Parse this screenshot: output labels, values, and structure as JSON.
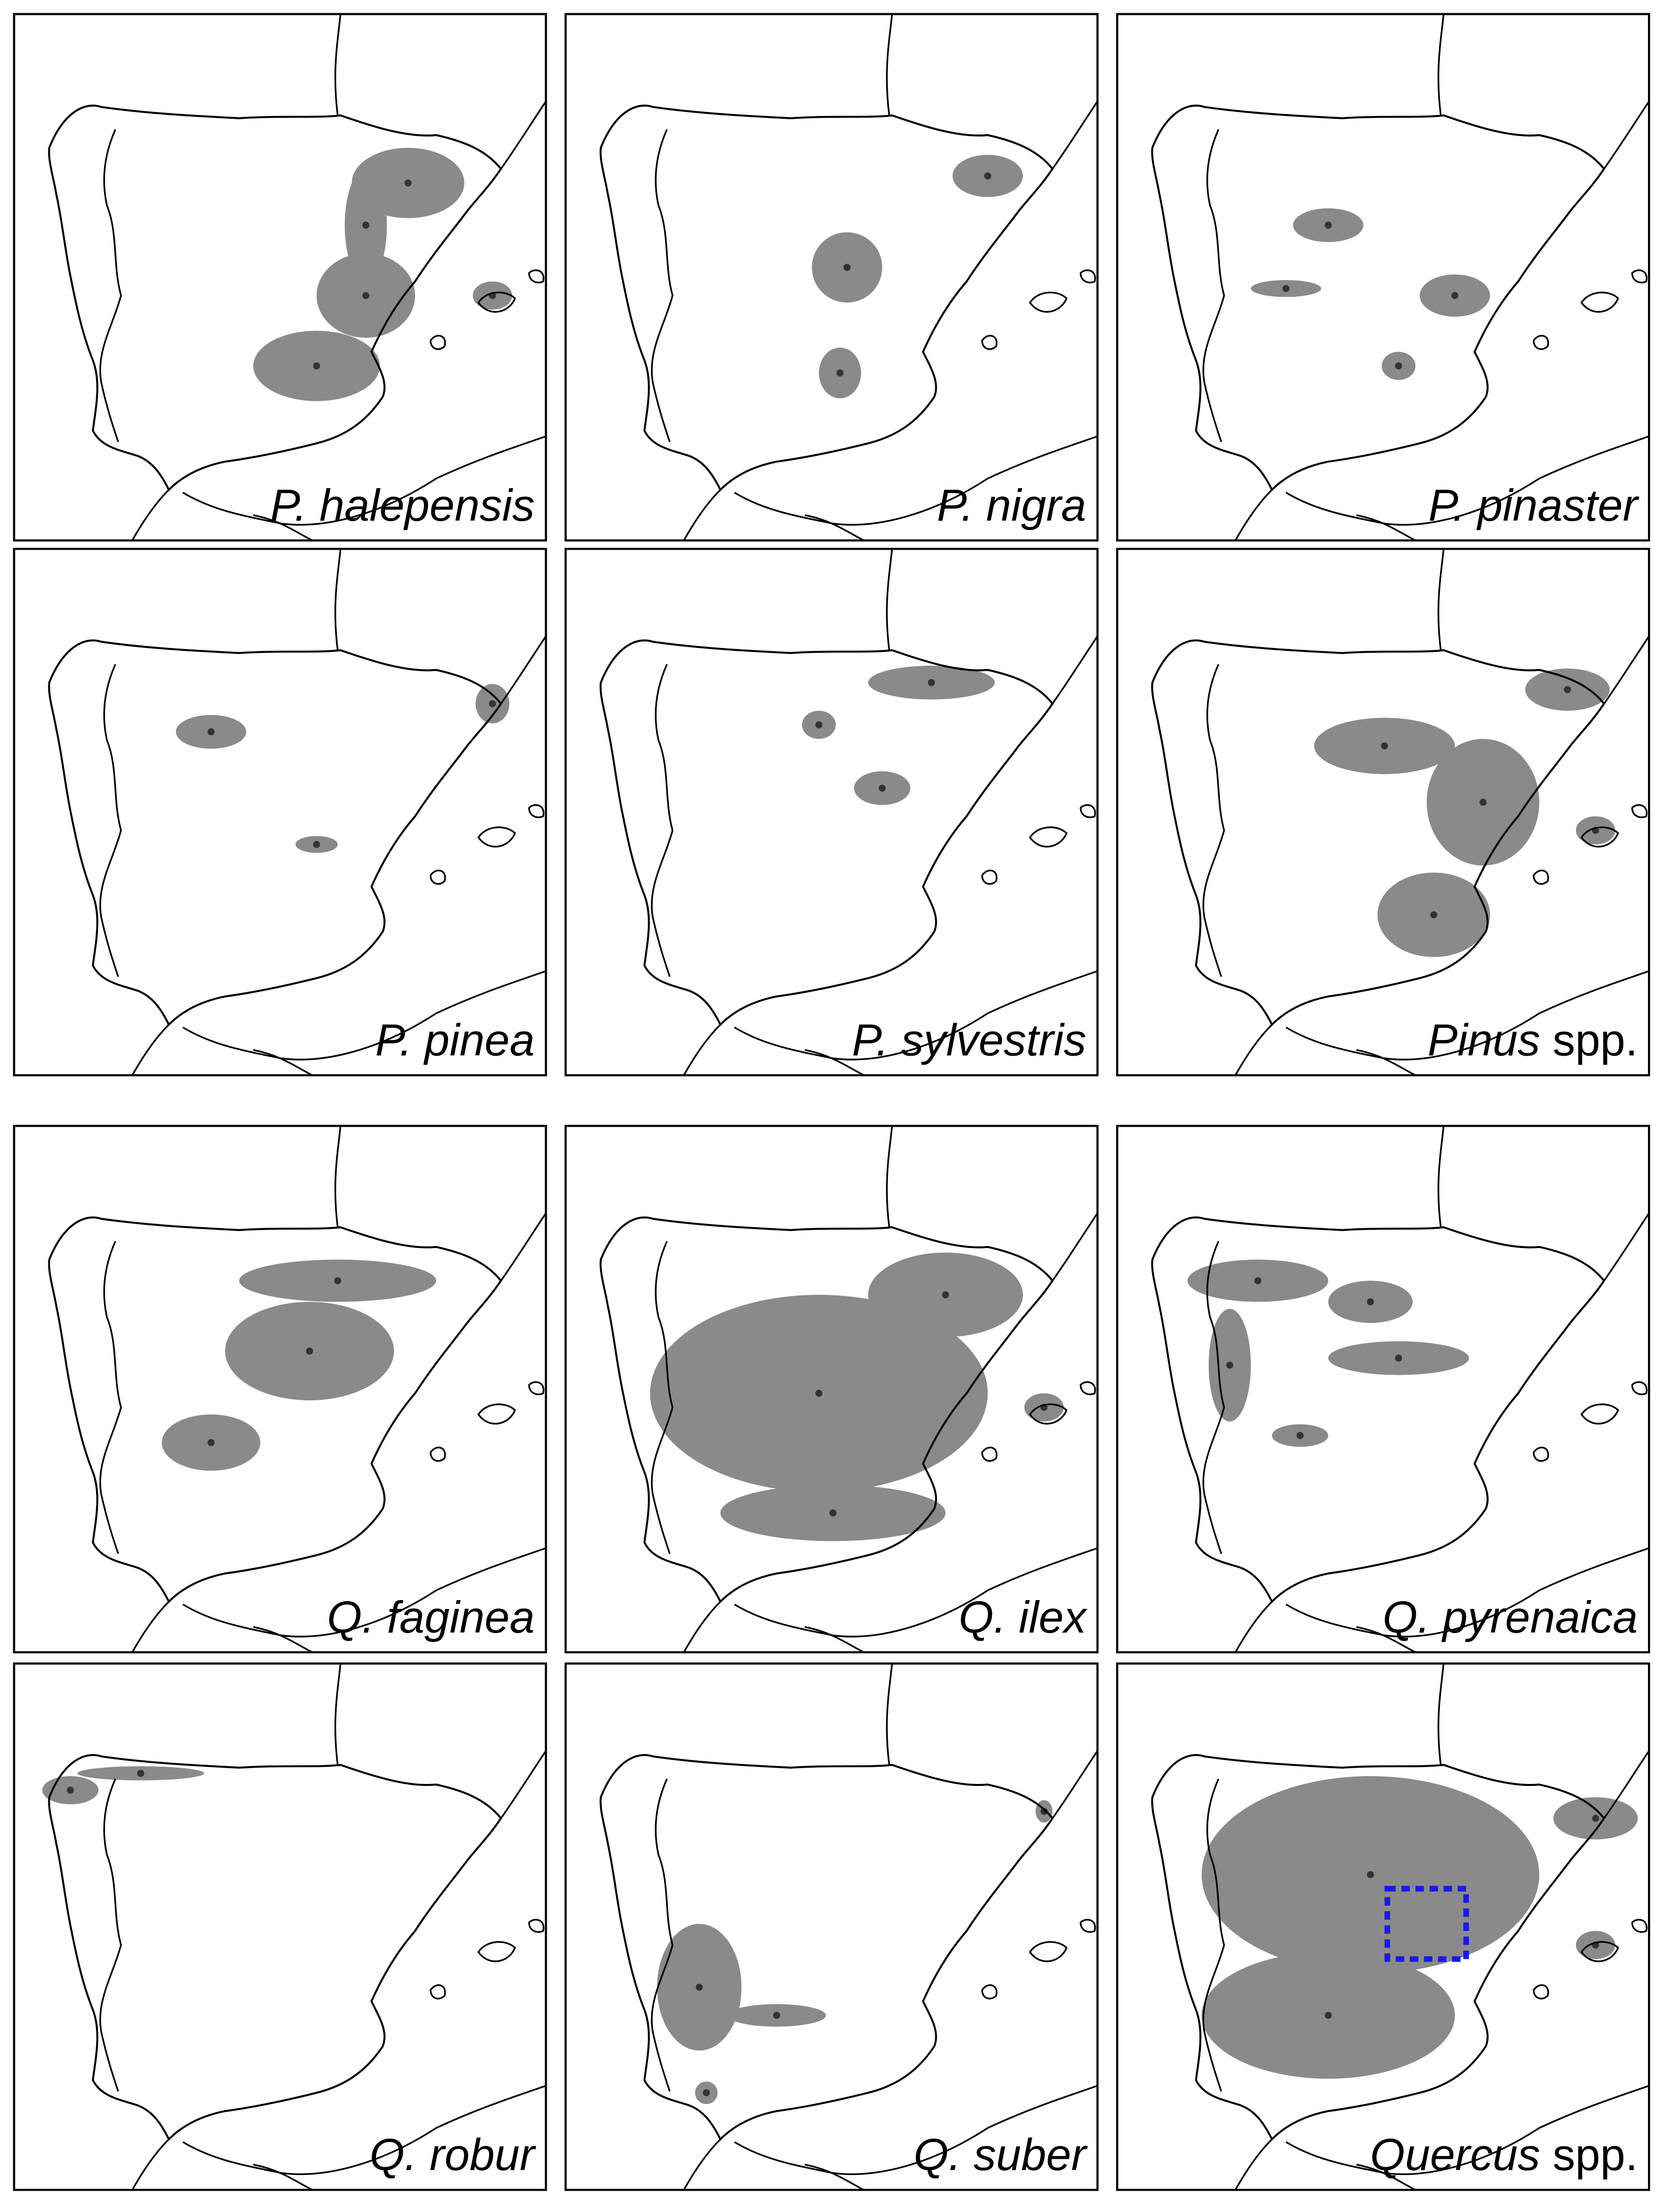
{
  "panels": [
    {
      "name": "P. halepensis"
    },
    {
      "name": "P. nigra"
    },
    {
      "name": "P. pinaster"
    },
    {
      "name": "P. pinea"
    },
    {
      "name": "P. sylvestris"
    },
    {
      "name": "Pinus",
      "suffix": "spp."
    },
    {
      "name": "Q. faginea"
    },
    {
      "name": "Q. ilex"
    },
    {
      "name": "Q. pyrenaica"
    },
    {
      "name": "Q. robur"
    },
    {
      "name": "Q. suber"
    },
    {
      "name": "Quercus",
      "suffix": "spp."
    }
  ]
}
